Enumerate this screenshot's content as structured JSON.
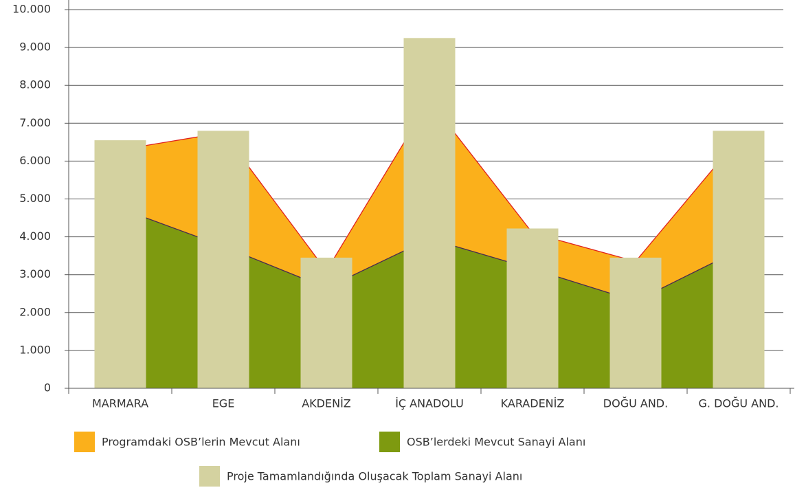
{
  "chart_data": {
    "type": "bar-area",
    "categories": [
      "MARMARA",
      "EGE",
      "AKDENİZ",
      "İÇ ANADOLU",
      "KARADENİZ",
      "DOĞU AND.",
      "G. DOĞU AND."
    ],
    "series": [
      {
        "name": "Programdaki OSB’lerin Mevcut Alanı",
        "type": "area",
        "color": "#fbb01b",
        "line_color": "#e0201c",
        "values": [
          6300,
          6750,
          3100,
          7600,
          4100,
          3350,
          6600
        ]
      },
      {
        "name": "OSB’lerdeki Mevcut Sanayi Alanı",
        "type": "area",
        "color": "#7e9a10",
        "line_color": "#4a2a50",
        "values": [
          4750,
          3750,
          2650,
          3950,
          3150,
          2300,
          3650
        ]
      },
      {
        "name": "Proje Tamamlandığında Oluşacak Toplam Sanayi Alanı",
        "type": "bar",
        "color": "#d4d2a0",
        "values": [
          6550,
          6800,
          3450,
          9250,
          4220,
          3450,
          6800
        ]
      }
    ],
    "ylim": [
      0,
      10000
    ],
    "yticks": [
      0,
      {
        "value": 1000,
        "label": "1.000"
      },
      {
        "value": 2000,
        "label": "2.000"
      },
      {
        "value": 3000,
        "label": "3.000"
      },
      {
        "value": 4000,
        "label": "4.000"
      },
      {
        "value": 5000,
        "label": "5.000"
      },
      {
        "value": 6000,
        "label": "6.000"
      },
      {
        "value": 7000,
        "label": "7.000"
      },
      {
        "value": 8000,
        "label": "8.000"
      },
      {
        "value": 9000,
        "label": "9.000"
      },
      {
        "value": 10000,
        "label": "10.000"
      }
    ],
    "grid": true
  }
}
